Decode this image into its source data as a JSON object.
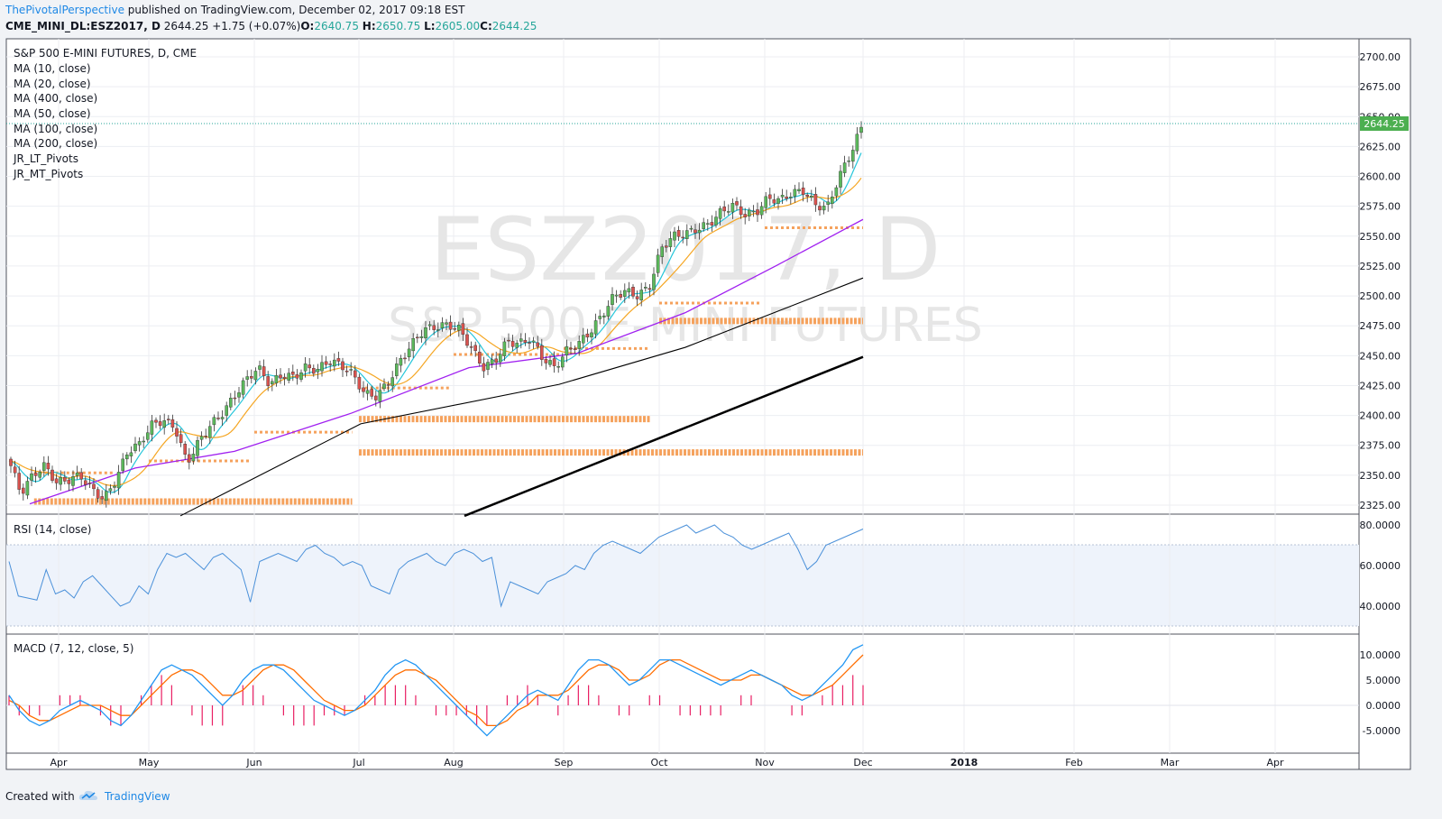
{
  "header": {
    "publisher": "ThePivotalPerspective",
    "published_text": " published on TradingView.com, December 02, 2017 09:18 EST",
    "symbol": "CME_MINI_DL:ESZ2017, D",
    "price": "2644.25",
    "change": "+1.75 (+0.07%)",
    "open_label": "O:",
    "open": "2640.75",
    "high_label": "H:",
    "high": "2650.75",
    "low_label": "L:",
    "low": "2605.00",
    "close_label": "C:",
    "close": "2644.25"
  },
  "watermark": {
    "symbol": "ESZ2017, D",
    "name": "S&P 500 E-MINI FUTURES"
  },
  "legend": {
    "title": "S&P 500 E-MINI FUTURES, D, CME",
    "items": [
      "MA (10, close)",
      "MA (20, close)",
      "MA (400, close)",
      "MA (50, close)",
      "MA (100, close)",
      "MA (200, close)",
      "JR_LT_Pivots",
      "JR_MT_Pivots"
    ]
  },
  "rsi_label": "RSI (14, close)",
  "macd_label": "MACD (7, 12, close, 5)",
  "last_price_tag": "2644.25",
  "colors": {
    "up": "#5cb85c",
    "down": "#d9534f",
    "ma10": "#26c6da",
    "ma20": "#f5a623",
    "ma50": "#a020f0",
    "ma100": "#000000",
    "ma200": "#000000",
    "pivot": "#f5a25d",
    "rsi": "#4a90d9",
    "macd": "#2196f3",
    "signal": "#ff6d00",
    "hist": "#e91e63"
  },
  "footer": {
    "created_with": "Created with",
    "brand": "TradingView"
  },
  "chart_data": [
    {
      "type": "candlestick",
      "title": "S&P 500 E-MINI FUTURES, D, CME",
      "ylim": [
        2316,
        2716
      ],
      "y_ticks": [
        "2700.00",
        "2675.00",
        "2650.00",
        "2625.00",
        "2600.00",
        "2575.00",
        "2550.00",
        "2525.00",
        "2500.00",
        "2475.00",
        "2450.00",
        "2425.00",
        "2400.00",
        "2375.00",
        "2350.00",
        "2325.00"
      ],
      "x_ticks": [
        "Apr",
        "May",
        "Jun",
        "Jul",
        "Aug",
        "Sep",
        "Oct",
        "Nov",
        "Dec",
        "2018",
        "Feb",
        "Mar",
        "Apr"
      ],
      "close_path": [
        2362,
        2335,
        2350,
        2358,
        2344,
        2346,
        2350,
        2338,
        2330,
        2346,
        2370,
        2376,
        2392,
        2396,
        2390,
        2360,
        2378,
        2392,
        2402,
        2416,
        2430,
        2440,
        2426,
        2434,
        2432,
        2440,
        2438,
        2446,
        2442,
        2434,
        2418,
        2416,
        2428,
        2446,
        2460,
        2472,
        2474,
        2476,
        2472,
        2456,
        2440,
        2446,
        2462,
        2460,
        2464,
        2448,
        2440,
        2454,
        2460,
        2470,
        2484,
        2500,
        2504,
        2500,
        2508,
        2540,
        2550,
        2552,
        2556,
        2560,
        2570,
        2576,
        2568,
        2570,
        2582,
        2580,
        2586,
        2588,
        2576,
        2574,
        2600,
        2620,
        2644
      ],
      "close_path_dates": [
        "Mar 22",
        "Dec 01"
      ],
      "last": 2644.25,
      "moving_averages": [
        {
          "name": "MA (10, close)",
          "end": 2606
        },
        {
          "name": "MA (20, close)",
          "end": 2594
        },
        {
          "name": "MA (50, close)",
          "start": 2326,
          "end": 2564
        },
        {
          "name": "MA (100, close)",
          "end": 2515
        },
        {
          "name": "MA (200, close)",
          "end": 2449
        },
        {
          "name": "MA (400, close)"
        }
      ],
      "pivot_levels": [
        {
          "level": 2328,
          "from": "Mar 24",
          "to": "Jun 30",
          "weight": "heavy"
        },
        {
          "level": 2352,
          "from": "Mar 24",
          "to": "Apr 20",
          "weight": "light"
        },
        {
          "level": 2362,
          "from": "May 01",
          "to": "May 31",
          "weight": "light"
        },
        {
          "level": 2386,
          "from": "Jun 01",
          "to": "Jun 30",
          "weight": "light"
        },
        {
          "level": 2397,
          "from": "Jul 01",
          "to": "Sep 29",
          "weight": "heavy"
        },
        {
          "level": 2369,
          "from": "Jul 01",
          "to": "Dec 01",
          "weight": "heavy"
        },
        {
          "level": 2423,
          "from": "Jul 03",
          "to": "Jul 31",
          "weight": "light"
        },
        {
          "level": 2451,
          "from": "Aug 01",
          "to": "Aug 31",
          "weight": "light"
        },
        {
          "level": 2456,
          "from": "Sep 01",
          "to": "Sep 29",
          "weight": "light"
        },
        {
          "level": 2479,
          "from": "Oct 01",
          "to": "Dec 01",
          "weight": "heavy"
        },
        {
          "level": 2494,
          "from": "Oct 01",
          "to": "Oct 31",
          "weight": "light"
        },
        {
          "level": 2557,
          "from": "Nov 01",
          "to": "Dec 01",
          "weight": "light"
        }
      ]
    },
    {
      "type": "line",
      "title": "RSI (14, close)",
      "ylim": [
        26,
        82
      ],
      "band": [
        30,
        70
      ],
      "y_ticks": [
        "80.0000",
        "60.0000",
        "40.0000"
      ],
      "values": [
        62,
        45,
        44,
        43,
        58,
        46,
        48,
        44,
        52,
        55,
        50,
        45,
        40,
        42,
        50,
        46,
        58,
        66,
        64,
        66,
        62,
        58,
        64,
        66,
        62,
        58,
        42,
        62,
        64,
        66,
        64,
        62,
        68,
        70,
        66,
        64,
        60,
        62,
        60,
        50,
        48,
        46,
        58,
        62,
        64,
        66,
        62,
        60,
        66,
        68,
        66,
        62,
        64,
        40,
        52,
        50,
        48,
        46,
        52,
        54,
        56,
        60,
        58,
        66,
        70,
        72,
        70,
        68,
        66,
        70,
        74,
        76,
        78,
        80,
        76,
        78,
        80,
        76,
        74,
        70,
        68,
        70,
        72,
        74,
        76,
        68,
        58,
        62,
        70,
        72,
        74,
        76,
        78
      ]
    },
    {
      "type": "line",
      "title": "MACD (7, 12, close, 5)",
      "ylim": [
        -7,
        13
      ],
      "y_ticks": [
        "10.0000",
        "5.0000",
        "0.0000",
        "-5.0000"
      ],
      "series": [
        {
          "values": [
            2,
            -1,
            -3,
            -4,
            -3,
            -1,
            0,
            1,
            0,
            -1,
            -3,
            -4,
            -2,
            1,
            4,
            7,
            8,
            7,
            6,
            4,
            2,
            0,
            2,
            5,
            7,
            8,
            8,
            7,
            5,
            3,
            1,
            0,
            -1,
            -2,
            -1,
            1,
            3,
            6,
            8,
            9,
            8,
            6,
            4,
            2,
            0,
            -2,
            -4,
            -6,
            -4,
            -2,
            0,
            2,
            3,
            2,
            1,
            4,
            7,
            9,
            9,
            8,
            6,
            4,
            5,
            7,
            9,
            9,
            8,
            7,
            6,
            5,
            4,
            5,
            6,
            7,
            6,
            5,
            4,
            2,
            1,
            2,
            4,
            6,
            8,
            11,
            12
          ]
        },
        {
          "values": [
            1,
            0,
            -2,
            -3,
            -3,
            -2,
            -1,
            0,
            0,
            0,
            -1,
            -2,
            -2,
            0,
            2,
            4,
            6,
            7,
            7,
            6,
            4,
            2,
            2,
            3,
            5,
            7,
            8,
            8,
            7,
            5,
            3,
            1,
            0,
            -1,
            -1,
            0,
            2,
            4,
            6,
            7,
            7,
            6,
            5,
            3,
            1,
            -1,
            -2,
            -4,
            -4,
            -3,
            -1,
            0,
            2,
            2,
            2,
            3,
            5,
            7,
            8,
            8,
            7,
            5,
            5,
            6,
            8,
            9,
            9,
            8,
            7,
            6,
            5,
            5,
            5,
            6,
            6,
            5,
            4,
            3,
            2,
            2,
            3,
            4,
            6,
            8,
            10
          ]
        }
      ]
    }
  ]
}
